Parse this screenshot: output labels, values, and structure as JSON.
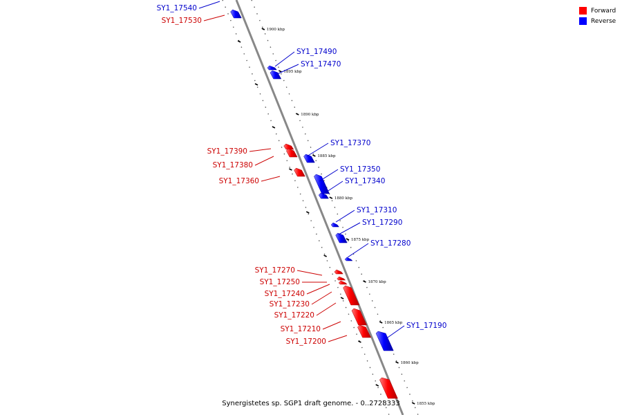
{
  "caption": "Synergistetes sp. SGP1 draft genome. - 0..2728333",
  "legend": {
    "forward_label": "Forward",
    "reverse_label": "Reverse",
    "forward_color": "#ff0000",
    "reverse_color": "#0000ff"
  },
  "colors": {
    "forward_label": "#cc0000",
    "reverse_label": "#0000cc",
    "forward_fill": "#ff0000",
    "reverse_fill": "#0000ff",
    "backbone": "#888888"
  },
  "scale_ticks": [
    "1900 kbp",
    "1895 kbp",
    "1890 kbp",
    "1885 kbp",
    "1880 kbp",
    "1875 kbp",
    "1870 kbp",
    "1865 kbp",
    "1860 kbp",
    "1855 kbp"
  ],
  "genes": [
    {
      "name": "SY1_17540",
      "strand": "reverse"
    },
    {
      "name": "SY1_17530",
      "strand": "forward"
    },
    {
      "name": "SY1_17490",
      "strand": "reverse"
    },
    {
      "name": "SY1_17470",
      "strand": "reverse"
    },
    {
      "name": "SY1_17390",
      "strand": "forward"
    },
    {
      "name": "SY1_17380",
      "strand": "forward"
    },
    {
      "name": "SY1_17370",
      "strand": "reverse"
    },
    {
      "name": "SY1_17360",
      "strand": "forward"
    },
    {
      "name": "SY1_17350",
      "strand": "reverse"
    },
    {
      "name": "SY1_17340",
      "strand": "reverse"
    },
    {
      "name": "SY1_17310",
      "strand": "reverse"
    },
    {
      "name": "SY1_17290",
      "strand": "reverse"
    },
    {
      "name": "SY1_17280",
      "strand": "reverse"
    },
    {
      "name": "SY1_17270",
      "strand": "forward"
    },
    {
      "name": "SY1_17250",
      "strand": "forward"
    },
    {
      "name": "SY1_17240",
      "strand": "forward"
    },
    {
      "name": "SY1_17230",
      "strand": "forward"
    },
    {
      "name": "SY1_17220",
      "strand": "forward"
    },
    {
      "name": "SY1_17210",
      "strand": "forward"
    },
    {
      "name": "SY1_17200",
      "strand": "forward"
    },
    {
      "name": "SY1_17190",
      "strand": "reverse"
    }
  ]
}
